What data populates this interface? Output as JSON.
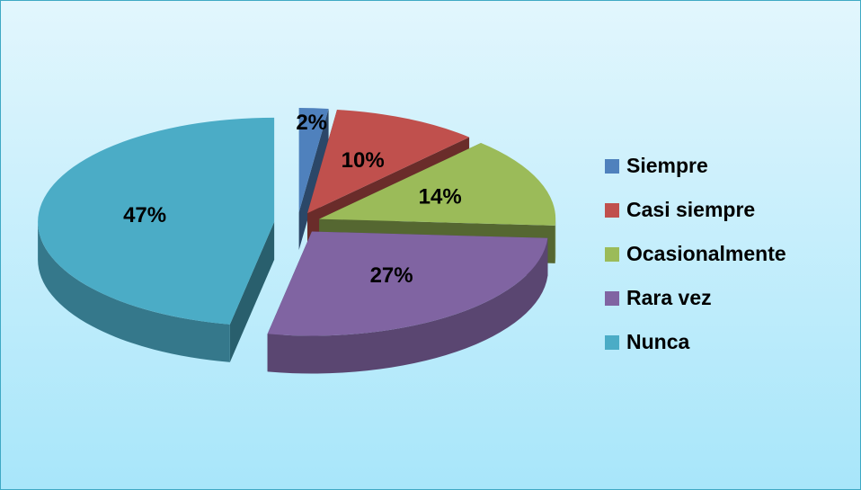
{
  "chart_data": {
    "type": "pie",
    "categories": [
      "Siempre",
      "Casi siempre",
      "Ocasionalmente",
      "Rara vez",
      "Nunca"
    ],
    "values": [
      2,
      10,
      14,
      27,
      47
    ],
    "value_labels": [
      "2%",
      "10%",
      "14%",
      "27%",
      "47%"
    ],
    "colors": [
      "#4f81bd",
      "#c0504d",
      "#9bbb59",
      "#8064a2",
      "#4bacc6"
    ],
    "legend": "right"
  }
}
